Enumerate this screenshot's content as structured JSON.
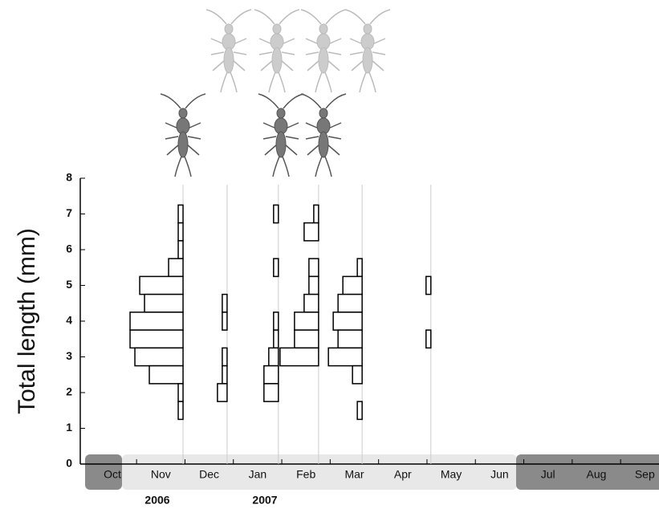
{
  "chart_data": {
    "type": "histogram",
    "y_label": "Total length (mm)",
    "ylim": [
      0,
      8
    ],
    "yticks": [
      0,
      1,
      2,
      3,
      4,
      5,
      6,
      7,
      8
    ],
    "categories": [
      "Oct",
      "Nov",
      "Dec",
      "Jan",
      "Feb",
      "Mar",
      "Apr",
      "May",
      "Jun",
      "Jul",
      "Aug",
      "Sep"
    ],
    "year_labels": [
      "2006",
      "2007"
    ],
    "color": "#000000",
    "samples": [
      {
        "x": 1.46,
        "length": [
          7.0,
          6.5,
          6.0,
          5.5,
          5.0,
          4.5,
          4.0,
          3.5,
          3.0,
          2.5,
          2.0,
          1.5
        ],
        "counts": [
          1,
          1,
          1,
          3,
          9,
          8,
          11,
          11,
          10,
          7,
          1,
          1
        ]
      },
      {
        "x": 2.37,
        "length": [
          4.5,
          4.0,
          3.0,
          2.5,
          2.0
        ],
        "counts": [
          1,
          1,
          1,
          1,
          2
        ]
      },
      {
        "x": 3.43,
        "length": [
          7.0,
          5.5,
          4.0,
          3.5,
          3.0,
          2.5,
          2.0
        ],
        "counts": [
          1,
          1,
          1,
          1,
          2,
          3,
          3
        ]
      },
      {
        "x": 4.26,
        "length": [
          7.0,
          6.5,
          5.5,
          5.0,
          4.5,
          4.0,
          3.5,
          3.0
        ],
        "counts": [
          1,
          3,
          2,
          2,
          3,
          5,
          5,
          8
        ]
      },
      {
        "x": 5.16,
        "length": [
          5.5,
          5.0,
          4.5,
          4.0,
          3.5,
          3.0,
          2.5,
          1.5
        ],
        "counts": [
          1,
          4,
          5,
          6,
          5,
          7,
          2,
          1
        ]
      },
      {
        "x": 6.58,
        "length": [
          5.0,
          3.5
        ],
        "counts": [
          1,
          1
        ]
      }
    ]
  }
}
